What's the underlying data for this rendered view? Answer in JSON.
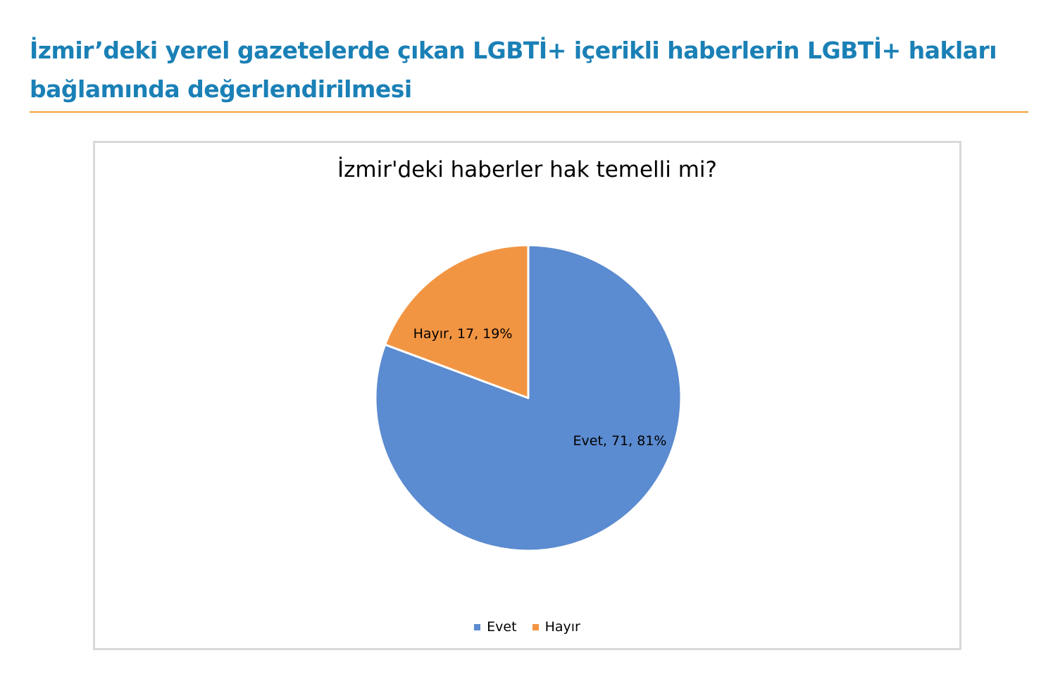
{
  "page": {
    "heading": "İzmir’deki yerel gazetelerde çıkan LGBTİ+ içerikli haberlerin LGBTİ+ hakları bağlamında değerlendirilmesi",
    "heading_color": "#1a80b6",
    "rule_color": "#f0a030"
  },
  "chart_data": {
    "type": "pie",
    "title": "İzmir'deki haberler hak temelli mi?",
    "slices": [
      {
        "label": "Evet",
        "value": 71,
        "percent": 81,
        "color": "#5b8bd0",
        "data_label": "Evet, 71, 81%"
      },
      {
        "label": "Hayır",
        "value": 17,
        "percent": 19,
        "color": "#f29542",
        "data_label": "Hayır, 17, 19%"
      }
    ],
    "start_angle": "12 o'clock",
    "direction": "clockwise",
    "legend": {
      "position": "bottom",
      "entries": [
        "Evet",
        "Hayır"
      ]
    }
  }
}
